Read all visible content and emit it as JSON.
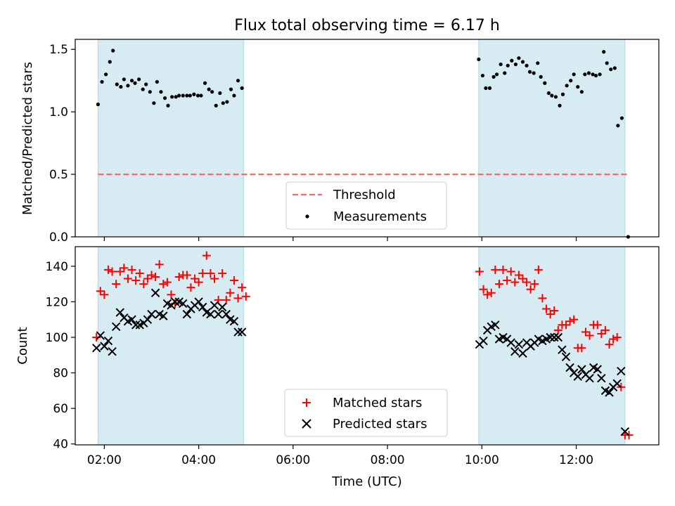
{
  "figure": {
    "title": "Flux total observing time = 6.17 h"
  },
  "colors": {
    "window_fill": "#add8e6",
    "window_alpha": 0.5,
    "threshold": "#ff6666",
    "matched": "#ff0000",
    "predicted": "#000000"
  },
  "chart_data": [
    {
      "id": "ratio-panel",
      "type": "scatter",
      "title": "Flux total observing time = 6.17 h",
      "xlabel": "",
      "ylabel": "Matched/Predicted stars",
      "xlim": [
        "01:23",
        "13:45"
      ],
      "ylim": [
        0,
        1.58
      ],
      "yticks": [
        0.0,
        0.5,
        1.0,
        1.5
      ],
      "ytick_labels": [
        "0.0",
        "0.5",
        "1.0",
        "1.5"
      ],
      "xticks": [
        "02:00",
        "04:00",
        "06:00",
        "08:00",
        "10:00",
        "12:00"
      ],
      "show_xtick_labels": false,
      "grid": false,
      "legend_position": "bottom-center",
      "observing_windows": [
        [
          "01:52",
          "04:57"
        ],
        [
          "09:56",
          "13:02"
        ]
      ],
      "threshold": {
        "name": "Threshold",
        "value": 0.5,
        "x_range": [
          "01:52",
          "13:06"
        ]
      },
      "series": [
        {
          "name": "Measurements",
          "marker": "dot",
          "points": [
            [
              "01:52",
              1.06
            ],
            [
              "01:57",
              1.24
            ],
            [
              "02:02",
              1.3
            ],
            [
              "02:07",
              1.4
            ],
            [
              "02:11",
              1.49
            ],
            [
              "02:16",
              1.22
            ],
            [
              "02:21",
              1.2
            ],
            [
              "02:25",
              1.26
            ],
            [
              "02:30",
              1.21
            ],
            [
              "02:35",
              1.25
            ],
            [
              "02:39",
              1.23
            ],
            [
              "02:44",
              1.26
            ],
            [
              "02:49",
              1.18
            ],
            [
              "02:53",
              1.22
            ],
            [
              "02:58",
              1.16
            ],
            [
              "03:03",
              1.07
            ],
            [
              "03:07",
              1.24
            ],
            [
              "03:12",
              1.16
            ],
            [
              "03:17",
              1.11
            ],
            [
              "03:21",
              1.05
            ],
            [
              "03:26",
              1.12
            ],
            [
              "03:31",
              1.12
            ],
            [
              "03:35",
              1.13
            ],
            [
              "03:40",
              1.13
            ],
            [
              "03:45",
              1.13
            ],
            [
              "03:49",
              1.13
            ],
            [
              "03:54",
              1.14
            ],
            [
              "03:59",
              1.13
            ],
            [
              "04:03",
              1.13
            ],
            [
              "04:08",
              1.23
            ],
            [
              "04:13",
              1.18
            ],
            [
              "04:17",
              1.16
            ],
            [
              "04:22",
              1.05
            ],
            [
              "04:27",
              1.15
            ],
            [
              "04:31",
              1.07
            ],
            [
              "04:36",
              1.08
            ],
            [
              "04:41",
              1.18
            ],
            [
              "04:45",
              1.13
            ],
            [
              "04:50",
              1.25
            ],
            [
              "04:55",
              1.19
            ],
            [
              "09:56",
              1.42
            ],
            [
              "10:01",
              1.29
            ],
            [
              "10:05",
              1.19
            ],
            [
              "10:10",
              1.19
            ],
            [
              "10:15",
              1.28
            ],
            [
              "10:19",
              1.3
            ],
            [
              "10:24",
              1.38
            ],
            [
              "10:29",
              1.31
            ],
            [
              "10:33",
              1.37
            ],
            [
              "10:38",
              1.41
            ],
            [
              "10:43",
              1.38
            ],
            [
              "10:47",
              1.43
            ],
            [
              "10:52",
              1.4
            ],
            [
              "10:57",
              1.37
            ],
            [
              "11:01",
              1.32
            ],
            [
              "11:06",
              1.31
            ],
            [
              "11:11",
              1.39
            ],
            [
              "11:15",
              1.28
            ],
            [
              "11:20",
              1.23
            ],
            [
              "11:25",
              1.15
            ],
            [
              "11:29",
              1.13
            ],
            [
              "11:34",
              1.12
            ],
            [
              "11:39",
              1.05
            ],
            [
              "11:43",
              1.14
            ],
            [
              "11:48",
              1.21
            ],
            [
              "11:53",
              1.25
            ],
            [
              "11:57",
              1.3
            ],
            [
              "12:02",
              1.2
            ],
            [
              "12:07",
              1.16
            ],
            [
              "12:11",
              1.3
            ],
            [
              "12:16",
              1.31
            ],
            [
              "12:21",
              1.3
            ],
            [
              "12:25",
              1.29
            ],
            [
              "12:30",
              1.3
            ],
            [
              "12:35",
              1.48
            ],
            [
              "12:39",
              1.39
            ],
            [
              "12:44",
              1.34
            ],
            [
              "12:49",
              1.35
            ],
            [
              "12:53",
              0.89
            ],
            [
              "12:58",
              0.95
            ],
            [
              "13:06",
              0.0
            ]
          ]
        }
      ]
    },
    {
      "id": "count-panel",
      "type": "scatter",
      "title": "",
      "xlabel": "Time (UTC)",
      "ylabel": "Count",
      "xlim": [
        "01:23",
        "13:45"
      ],
      "ylim": [
        39.5,
        151
      ],
      "yticks": [
        40,
        60,
        80,
        100,
        120,
        140
      ],
      "ytick_labels": [
        "40",
        "60",
        "80",
        "100",
        "120",
        "140"
      ],
      "xticks": [
        "02:00",
        "04:00",
        "06:00",
        "08:00",
        "10:00",
        "12:00"
      ],
      "xtick_labels": [
        "02:00",
        "04:00",
        "06:00",
        "08:00",
        "10:00",
        "12:00"
      ],
      "grid": false,
      "legend_position": "bottom-center",
      "observing_windows": [
        [
          "01:52",
          "04:57"
        ],
        [
          "09:56",
          "13:02"
        ]
      ],
      "series": [
        {
          "name": "Matched stars",
          "marker": "plus",
          "points": [
            [
              "01:50",
              100
            ],
            [
              "01:55",
              126
            ],
            [
              "02:00",
              124
            ],
            [
              "02:05",
              138
            ],
            [
              "02:10",
              137
            ],
            [
              "02:15",
              130
            ],
            [
              "02:20",
              137
            ],
            [
              "02:25",
              139
            ],
            [
              "02:30",
              133
            ],
            [
              "02:35",
              138
            ],
            [
              "02:40",
              132
            ],
            [
              "02:45",
              136
            ],
            [
              "02:50",
              130
            ],
            [
              "02:55",
              133
            ],
            [
              "03:00",
              135
            ],
            [
              "03:05",
              134
            ],
            [
              "03:10",
              141
            ],
            [
              "03:15",
              130
            ],
            [
              "03:20",
              131
            ],
            [
              "03:25",
              124
            ],
            [
              "03:30",
              119
            ],
            [
              "03:35",
              134
            ],
            [
              "03:40",
              135
            ],
            [
              "03:45",
              135
            ],
            [
              "03:50",
              128
            ],
            [
              "03:55",
              133
            ],
            [
              "04:00",
              131
            ],
            [
              "04:05",
              136
            ],
            [
              "04:10",
              146
            ],
            [
              "04:15",
              136
            ],
            [
              "04:20",
              133
            ],
            [
              "04:25",
              121
            ],
            [
              "04:30",
              136
            ],
            [
              "04:35",
              121
            ],
            [
              "04:40",
              125
            ],
            [
              "04:45",
              132
            ],
            [
              "04:50",
              122
            ],
            [
              "04:55",
              128
            ],
            [
              "05:00",
              123
            ],
            [
              "09:57",
              137
            ],
            [
              "10:02",
              127
            ],
            [
              "10:07",
              124
            ],
            [
              "10:12",
              125
            ],
            [
              "10:17",
              138
            ],
            [
              "10:22",
              130
            ],
            [
              "10:27",
              138
            ],
            [
              "10:32",
              132
            ],
            [
              "10:37",
              137
            ],
            [
              "10:42",
              131
            ],
            [
              "10:47",
              135
            ],
            [
              "10:52",
              133
            ],
            [
              "10:57",
              131
            ],
            [
              "11:02",
              127
            ],
            [
              "11:07",
              130
            ],
            [
              "11:12",
              138
            ],
            [
              "11:17",
              122
            ],
            [
              "11:22",
              116
            ],
            [
              "11:27",
              113
            ],
            [
              "11:32",
              115
            ],
            [
              "11:37",
              104
            ],
            [
              "11:42",
              107
            ],
            [
              "11:47",
              107
            ],
            [
              "11:52",
              109
            ],
            [
              "11:57",
              110
            ],
            [
              "12:02",
              94
            ],
            [
              "12:07",
              94
            ],
            [
              "12:12",
              103
            ],
            [
              "12:17",
              101
            ],
            [
              "12:22",
              107
            ],
            [
              "12:27",
              107
            ],
            [
              "12:32",
              102
            ],
            [
              "12:37",
              104
            ],
            [
              "12:42",
              96
            ],
            [
              "12:47",
              99
            ],
            [
              "12:52",
              100
            ],
            [
              "12:57",
              72
            ],
            [
              "13:02",
              45
            ],
            [
              "13:07",
              45
            ]
          ]
        },
        {
          "name": "Predicted stars",
          "marker": "x",
          "points": [
            [
              "01:50",
              94
            ],
            [
              "01:55",
              101
            ],
            [
              "02:00",
              95
            ],
            [
              "02:05",
              98
            ],
            [
              "02:10",
              92
            ],
            [
              "02:15",
              106
            ],
            [
              "02:20",
              114
            ],
            [
              "02:25",
              111
            ],
            [
              "02:30",
              109
            ],
            [
              "02:35",
              110
            ],
            [
              "02:40",
              107
            ],
            [
              "02:45",
              107
            ],
            [
              "02:50",
              108
            ],
            [
              "02:55",
              110
            ],
            [
              "03:00",
              113
            ],
            [
              "03:05",
              125
            ],
            [
              "03:10",
              113
            ],
            [
              "03:15",
              112
            ],
            [
              "03:20",
              119
            ],
            [
              "03:25",
              118
            ],
            [
              "03:30",
              120
            ],
            [
              "03:35",
              120
            ],
            [
              "03:40",
              119
            ],
            [
              "03:45",
              113
            ],
            [
              "03:50",
              116
            ],
            [
              "03:55",
              118
            ],
            [
              "04:00",
              120
            ],
            [
              "04:05",
              117
            ],
            [
              "04:10",
              114
            ],
            [
              "04:15",
              113
            ],
            [
              "04:20",
              118
            ],
            [
              "04:25",
              113
            ],
            [
              "04:30",
              117
            ],
            [
              "04:35",
              113
            ],
            [
              "04:40",
              110
            ],
            [
              "04:45",
              109
            ],
            [
              "04:50",
              103
            ],
            [
              "04:55",
              103
            ],
            [
              "09:57",
              96
            ],
            [
              "10:02",
              98
            ],
            [
              "10:07",
              104
            ],
            [
              "10:12",
              106
            ],
            [
              "10:17",
              107
            ],
            [
              "10:22",
              99
            ],
            [
              "10:27",
              100
            ],
            [
              "10:32",
              99
            ],
            [
              "10:37",
              97
            ],
            [
              "10:42",
              92
            ],
            [
              "10:47",
              96
            ],
            [
              "10:52",
              91
            ],
            [
              "10:57",
              97
            ],
            [
              "11:02",
              95
            ],
            [
              "11:07",
              97
            ],
            [
              "11:12",
              99
            ],
            [
              "11:17",
              98
            ],
            [
              "11:22",
              99
            ],
            [
              "11:27",
              100
            ],
            [
              "11:32",
              100
            ],
            [
              "11:37",
              100
            ],
            [
              "11:42",
              93
            ],
            [
              "11:47",
              89
            ],
            [
              "11:52",
              83
            ],
            [
              "11:57",
              80
            ],
            [
              "12:02",
              78
            ],
            [
              "12:07",
              82
            ],
            [
              "12:12",
              79
            ],
            [
              "12:17",
              77
            ],
            [
              "12:22",
              83
            ],
            [
              "12:27",
              82
            ],
            [
              "12:32",
              77
            ],
            [
              "12:37",
              70
            ],
            [
              "12:42",
              69
            ],
            [
              "12:47",
              72
            ],
            [
              "12:52",
              74
            ],
            [
              "12:57",
              81
            ],
            [
              "13:02",
              47
            ]
          ]
        }
      ]
    }
  ]
}
